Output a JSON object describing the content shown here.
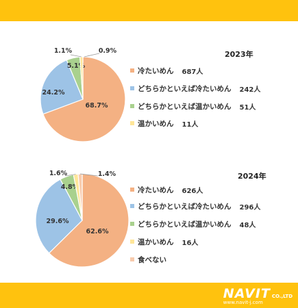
{
  "colors": {
    "band": "#FFC20E",
    "slices": [
      "#F4B183",
      "#9DC3E6",
      "#A9D18E",
      "#FFE699",
      "#F8CBAD"
    ],
    "logo": "#ffffff"
  },
  "logo": {
    "brand": "NAVIT",
    "suffix": "CO.,LTD",
    "url": "www.navit-j.com"
  },
  "chart_data": [
    {
      "type": "pie",
      "title": "2023年",
      "categories": [
        "冷たいめん",
        "どちらかといえば冷たいめん",
        "どちらかといえば温かいめん",
        "温かいめん"
      ],
      "counts": [
        "687人",
        "242人",
        "51人",
        "11人"
      ],
      "values": [
        68.7,
        24.2,
        5.1,
        1.1
      ],
      "extra_labels": [
        {
          "text": "0.9%"
        }
      ],
      "slice_labels": [
        "68.7%",
        "24.2%",
        "5.1%",
        "1.1%"
      ],
      "legend_position": "right"
    },
    {
      "type": "pie",
      "title": "2024年",
      "categories": [
        "冷たいめん",
        "どちらかといえば冷たいめん",
        "どちらかといえば温かいめん",
        "温かいめん",
        "食べない"
      ],
      "counts": [
        "626人",
        "296人",
        "48人",
        "16人",
        ""
      ],
      "values": [
        62.6,
        29.6,
        4.8,
        1.6,
        1.4
      ],
      "slice_labels": [
        "62.6%",
        "29.6%",
        "4.8%",
        "1.6%",
        "1.4%"
      ],
      "legend_position": "right"
    }
  ]
}
